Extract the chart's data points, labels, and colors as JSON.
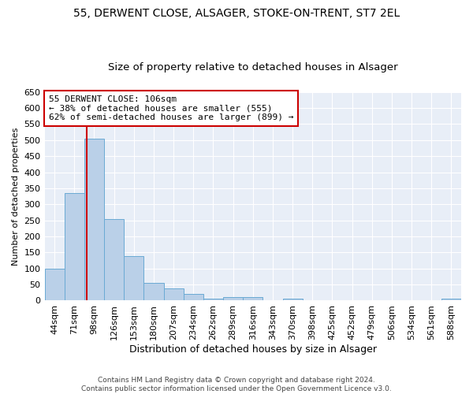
{
  "title": "55, DERWENT CLOSE, ALSAGER, STOKE-ON-TRENT, ST7 2EL",
  "subtitle": "Size of property relative to detached houses in Alsager",
  "xlabel": "Distribution of detached houses by size in Alsager",
  "ylabel": "Number of detached properties",
  "bar_categories": [
    "44sqm",
    "71sqm",
    "98sqm",
    "126sqm",
    "153sqm",
    "180sqm",
    "207sqm",
    "234sqm",
    "262sqm",
    "289sqm",
    "316sqm",
    "343sqm",
    "370sqm",
    "398sqm",
    "425sqm",
    "452sqm",
    "479sqm",
    "506sqm",
    "534sqm",
    "561sqm",
    "588sqm"
  ],
  "bar_heights": [
    99,
    336,
    505,
    253,
    138,
    55,
    39,
    20,
    7,
    10,
    10,
    1,
    5,
    2,
    1,
    0,
    0,
    0,
    0,
    0,
    5
  ],
  "bar_color": "#bad0e8",
  "bar_edge_color": "#6aaad4",
  "vline_color": "#cc0000",
  "vline_xindex": 1.62,
  "annotation_text": "55 DERWENT CLOSE: 106sqm\n← 38% of detached houses are smaller (555)\n62% of semi-detached houses are larger (899) →",
  "annotation_box_facecolor": "white",
  "annotation_box_edgecolor": "#cc0000",
  "ylim": [
    0,
    650
  ],
  "yticks": [
    0,
    50,
    100,
    150,
    200,
    250,
    300,
    350,
    400,
    450,
    500,
    550,
    600,
    650
  ],
  "bg_color": "#e8eef7",
  "grid_color": "white",
  "title_fontsize": 10,
  "subtitle_fontsize": 9.5,
  "xlabel_fontsize": 9,
  "ylabel_fontsize": 8,
  "tick_fontsize": 8,
  "annot_fontsize": 8,
  "footnote": "Contains HM Land Registry data © Crown copyright and database right 2024.\nContains public sector information licensed under the Open Government Licence v3.0.",
  "footnote_fontsize": 6.5
}
